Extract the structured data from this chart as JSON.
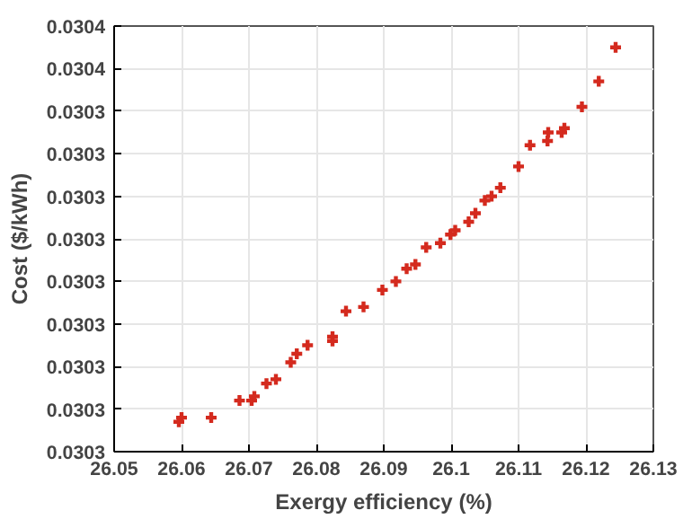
{
  "chart_data": {
    "type": "scatter",
    "xlabel": "Exergy efficiency (%)",
    "ylabel": "Cost ($/kWh)",
    "x": [
      26.0596,
      26.06,
      26.0644,
      26.0686,
      26.0704,
      26.0708,
      26.0726,
      26.074,
      26.0762,
      26.0771,
      26.0787,
      26.0824,
      26.0824,
      26.0844,
      26.087,
      26.0898,
      26.0918,
      26.0934,
      26.0947,
      26.0963,
      26.0984,
      26.0999,
      26.1006,
      26.1026,
      26.1036,
      26.105,
      26.106,
      26.1073,
      26.11,
      26.1117,
      26.1143,
      26.1144,
      26.1164,
      26.1168,
      26.1194,
      26.1219,
      26.1244
    ],
    "series": [
      {
        "color": "#d42a1e",
        "values": [
          0.0303417,
          0.0303418,
          0.0303418,
          0.0303422,
          0.0303422,
          0.0303423,
          0.0303426,
          0.0303427,
          0.0303431,
          0.0303433,
          0.0303435,
          0.0303437,
          0.0303436,
          0.0303443,
          0.0303444,
          0.0303448,
          0.030345,
          0.0303453,
          0.0303454,
          0.0303458,
          0.0303459,
          0.0303461,
          0.0303462,
          0.0303464,
          0.0303466,
          0.0303469,
          0.030347,
          0.0303472,
          0.0303477,
          0.0303482,
          0.0303483,
          0.0303485,
          0.0303485,
          0.0303486,
          0.0303491,
          0.0303497,
          0.0303505
        ]
      }
    ],
    "xlim": [
      26.05,
      26.13
    ],
    "xticks": [
      26.05,
      26.06,
      26.07,
      26.08,
      26.09,
      26.1,
      26.11,
      26.12,
      26.13
    ],
    "ylim": [
      0.030341,
      0.030351
    ],
    "yticks": [
      {
        "value": 0.030341,
        "label": "0.0303"
      },
      {
        "value": 0.030342,
        "label": "0.0303"
      },
      {
        "value": 0.030343,
        "label": "0.0303"
      },
      {
        "value": 0.030344,
        "label": "0.0303"
      },
      {
        "value": 0.030345,
        "label": "0.0303"
      },
      {
        "value": 0.030346,
        "label": "0.0303"
      },
      {
        "value": 0.030347,
        "label": "0.0303"
      },
      {
        "value": 0.030348,
        "label": "0.0303"
      },
      {
        "value": 0.030349,
        "label": "0.0303"
      },
      {
        "value": 0.03035,
        "label": "0.0304"
      },
      {
        "value": 0.030351,
        "label": "0.0304"
      }
    ],
    "grid": true,
    "marker": "cross"
  }
}
